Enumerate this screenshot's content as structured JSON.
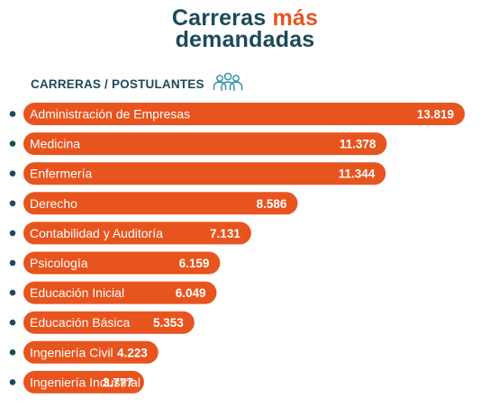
{
  "title": {
    "part1": "Carreras",
    "part2": "más",
    "line2": "demandadas"
  },
  "subtitle": "CARRERAS / POSTULANTES",
  "icons": {
    "people": "people-group-icon"
  },
  "colors": {
    "bar": "#e8541e",
    "title": "#1b4a5a",
    "accent": "#e8541e",
    "bullet": "#1b4a5a"
  },
  "chart_data": {
    "type": "bar",
    "orientation": "horizontal",
    "categories": [
      "Administración de Empresas",
      "Medicina",
      "Enfermería",
      "Derecho",
      "Contabilidad y Auditoría",
      "Psicología",
      "Educación Inicial",
      "Educación Básica",
      "Ingeniería Civil",
      "Ingeniería Industrial"
    ],
    "values": [
      13819,
      11378,
      11344,
      8586,
      7131,
      6159,
      6049,
      5353,
      4223,
      3777
    ],
    "value_labels": [
      "13.819",
      "11.378",
      "11.344",
      "8.586",
      "7.131",
      "6.159",
      "6.049",
      "5.353",
      "4.223",
      "3.777"
    ],
    "grid": false
  }
}
